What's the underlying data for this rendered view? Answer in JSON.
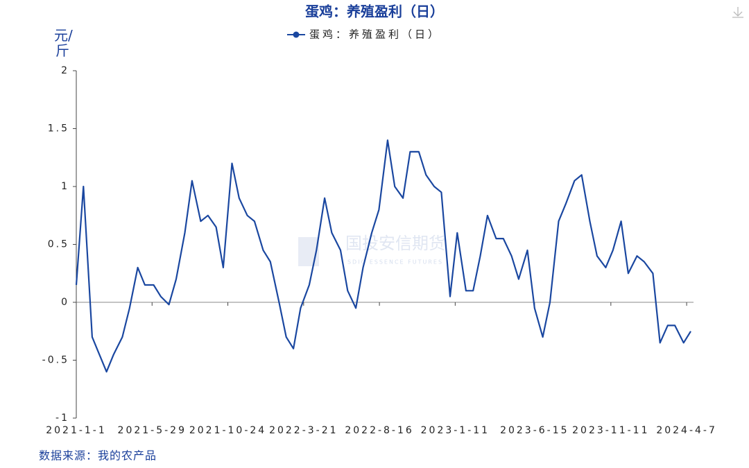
{
  "chart_data": {
    "type": "line",
    "title": "蛋鸡：养殖盈利（日）",
    "y_label": "元/斤",
    "source": "数据来源：我的农产品",
    "watermark": "国投安信期货",
    "watermark_en": "SDIC ESSENCE FUTURES",
    "x": [
      "2021-1-1",
      "2021-1-15",
      "2021-2-1",
      "2021-2-15",
      "2021-3-1",
      "2021-3-15",
      "2021-4-1",
      "2021-4-15",
      "2021-5-1",
      "2021-5-15",
      "2021-6-1",
      "2021-6-15",
      "2021-7-1",
      "2021-7-15",
      "2021-8-1",
      "2021-8-15",
      "2021-9-1",
      "2021-9-15",
      "2021-10-1",
      "2021-10-15",
      "2021-11-1",
      "2021-11-15",
      "2021-12-1",
      "2021-12-15",
      "2022-1-1",
      "2022-1-15",
      "2022-2-1",
      "2022-2-15",
      "2022-3-1",
      "2022-3-15",
      "2022-4-1",
      "2022-4-15",
      "2022-5-1",
      "2022-5-15",
      "2022-6-1",
      "2022-6-15",
      "2022-7-1",
      "2022-7-15",
      "2022-8-1",
      "2022-8-15",
      "2022-9-1",
      "2022-9-15",
      "2022-10-1",
      "2022-10-15",
      "2022-11-1",
      "2022-11-15",
      "2022-12-1",
      "2022-12-15",
      "2023-1-1",
      "2023-1-15",
      "2023-2-1",
      "2023-2-15",
      "2023-3-1",
      "2023-3-15",
      "2023-4-1",
      "2023-4-15",
      "2023-5-1",
      "2023-5-15",
      "2023-6-1",
      "2023-6-15",
      "2023-7-1",
      "2023-7-15",
      "2023-8-1",
      "2023-8-15",
      "2023-9-1",
      "2023-9-15",
      "2023-10-1",
      "2023-10-15",
      "2023-11-1",
      "2023-11-15",
      "2023-12-1",
      "2023-12-15",
      "2024-1-1",
      "2024-1-15",
      "2024-2-1",
      "2024-2-15",
      "2024-3-1",
      "2024-3-15",
      "2024-4-1",
      "2024-4-15"
    ],
    "series": [
      {
        "name": "蛋鸡：养殖盈利（日）",
        "color": "#1a47a0",
        "values": [
          0.15,
          1.0,
          -0.3,
          -0.45,
          -0.6,
          -0.45,
          -0.3,
          -0.05,
          0.3,
          0.15,
          0.15,
          0.05,
          -0.02,
          0.2,
          0.6,
          1.05,
          0.7,
          0.75,
          0.65,
          0.3,
          1.2,
          0.9,
          0.75,
          0.7,
          0.45,
          0.35,
          0.0,
          -0.3,
          -0.4,
          -0.05,
          0.15,
          0.45,
          0.9,
          0.6,
          0.45,
          0.1,
          -0.05,
          0.3,
          0.6,
          0.8,
          1.4,
          1.0,
          0.9,
          1.3,
          1.3,
          1.1,
          1.0,
          0.95,
          0.05,
          0.6,
          0.1,
          0.1,
          0.4,
          0.75,
          0.55,
          0.55,
          0.4,
          0.2,
          0.45,
          -0.05,
          -0.3,
          0.0,
          0.7,
          0.85,
          1.05,
          1.1,
          0.7,
          0.4,
          0.3,
          0.45,
          0.7,
          0.25,
          0.4,
          0.35,
          0.25,
          -0.35,
          -0.2,
          -0.2,
          -0.35,
          -0.25
        ]
      }
    ],
    "xlim": [
      "2021-1-1",
      "2024-4-15"
    ],
    "xticks": [
      "2021-1-1",
      "2021-5-29",
      "2021-10-24",
      "2022-3-21",
      "2022-8-16",
      "2023-1-11",
      "2023-6-15",
      "2023-11-11",
      "2024-4-7"
    ],
    "ylim": [
      -1,
      2
    ],
    "yticks": [
      -1,
      -0.5,
      0,
      0.5,
      1,
      1.5,
      2
    ]
  }
}
